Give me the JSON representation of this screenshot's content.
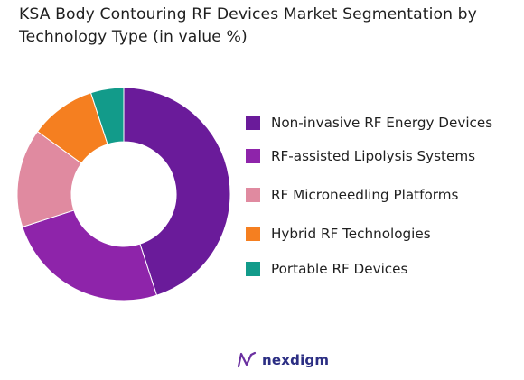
{
  "chart_data": {
    "type": "pie",
    "title": "KSA Body Contouring RF Devices Market Segmentation by Technology Type (in value %)",
    "categories": [
      "Non-invasive RF Energy Devices",
      "RF-assisted Lipolysis Systems",
      "RF Microneedling Platforms",
      "Hybrid RF Technologies",
      "Portable RF Devices"
    ],
    "values": [
      45,
      25,
      15,
      10,
      5
    ],
    "colors": [
      "#6a1b9a",
      "#8e24aa",
      "#e08aa0",
      "#f57f20",
      "#129b8a"
    ],
    "legend_position": "right",
    "donut": true
  },
  "brand": {
    "name": "nexdigm",
    "icon": "nexdigm-logo-icon"
  }
}
